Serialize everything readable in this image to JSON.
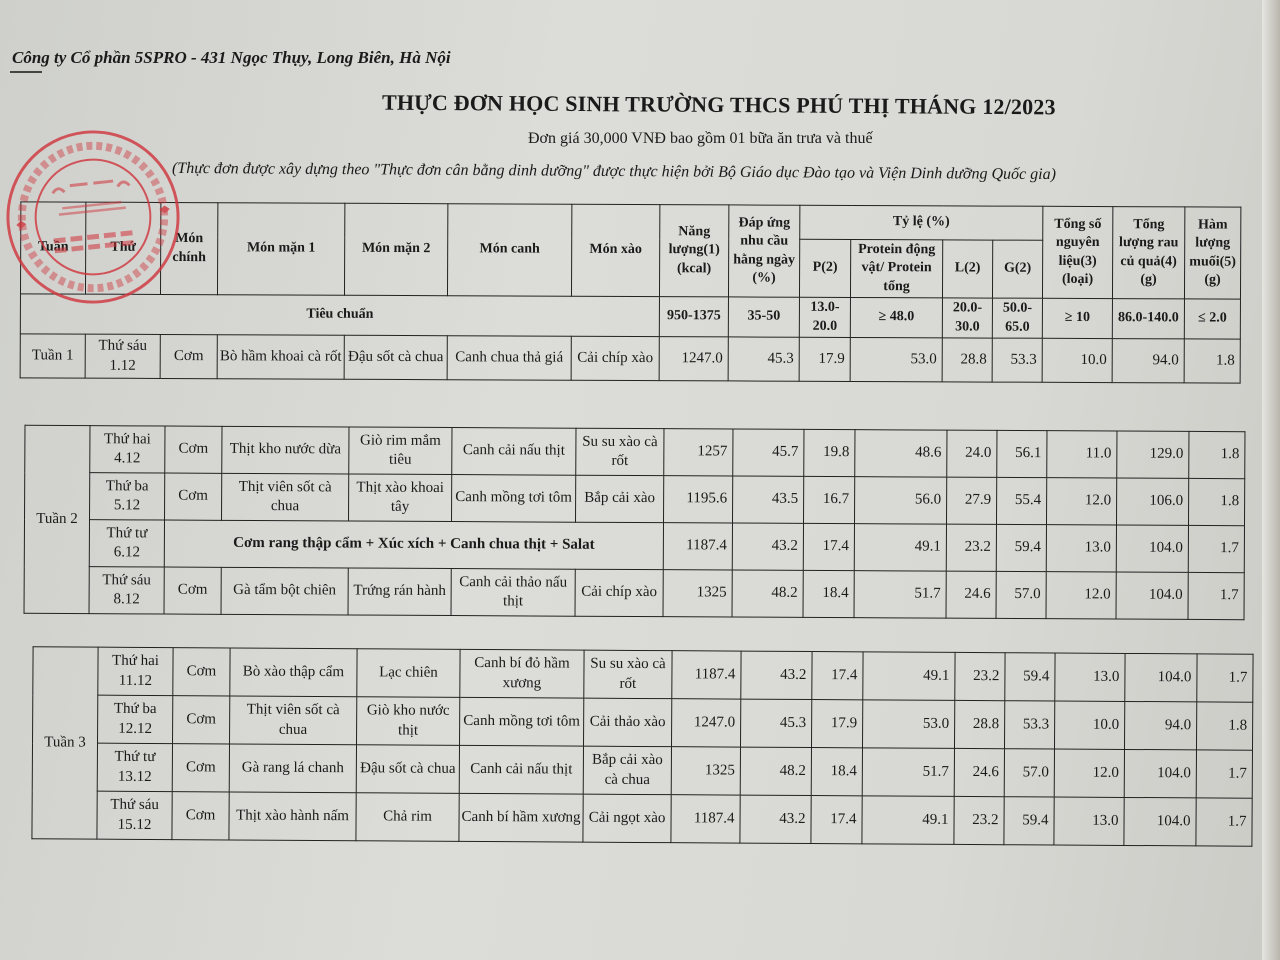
{
  "header": {
    "company": "Công ty Cổ phần 5SPRO  - 431 Ngọc Thụy, Long Biên, Hà Nội",
    "title": "THỰC ĐƠN HỌC SINH TRƯỜNG THCS PHÚ THỊ THÁNG 12/2023",
    "price": "Đơn giá 30,000 VNĐ bao gồm 01 bữa ăn trưa và thuế",
    "note": "(Thực đơn được xây dựng theo \"Thực đơn cân bằng dinh dưỡng\" được thực hiện bởi Bộ Giáo dục Đào tạo và Viện Dinh dưỡng Quốc gia)"
  },
  "stamp": {
    "color": "#d0343c",
    "lines": [
      "M.S.D.N:0104104405 - C.T.C.P",
      "CÔNG TY",
      "CỔ PHẦN",
      "5SPRO",
      "THÀNH PHỐ HÀ NỘI"
    ]
  },
  "columns": {
    "tuan": "Tuần",
    "thu": "Thứ",
    "mon_chinh": "Món chính",
    "mon_man_1": "Món mặn 1",
    "mon_man_2": "Món mặn 2",
    "mon_canh": "Món canh",
    "mon_xao": "Món xào",
    "nang_luong": "Năng lượng(1) (kcal)",
    "dap_ung": "Đáp ứng nhu cầu hằng ngày (%)",
    "ty_le": "Tỷ lệ (%)",
    "p": "P(2)",
    "protein": "Protein động vật/ Protein tổng",
    "l": "L(2)",
    "g": "G(2)",
    "tong_so": "Tổng số nguyên liệu(3) (loại)",
    "tong_luong": "Tổng lượng rau củ quả(4) (g)",
    "ham_luong": "Hàm lượng muối(5) (g)"
  },
  "standard": {
    "label": "Tiêu chuẩn",
    "values": [
      "950-1375",
      "35-50",
      "13.0-20.0",
      "≥ 48.0",
      "20.0-30.0",
      "50.0-65.0",
      "≥ 10",
      "86.0-140.0",
      "≤ 2.0"
    ]
  },
  "weeks": [
    {
      "label": "Tuần 1",
      "rows": [
        {
          "day": "Thứ sáu 1.12",
          "dishes": [
            "Cơm",
            "Bò hầm khoai cà rốt",
            "Đậu sốt cà chua",
            "Canh chua thả giá",
            "Cải chíp xào"
          ],
          "values": [
            "1247.0",
            "45.3",
            "17.9",
            "53.0",
            "28.8",
            "53.3",
            "10.0",
            "94.0",
            "1.8"
          ]
        }
      ]
    },
    {
      "label": "Tuần 2",
      "rows": [
        {
          "day": "Thứ hai 4.12",
          "dishes": [
            "Cơm",
            "Thịt kho nước dừa",
            "Giò rim mắm tiêu",
            "Canh cải nấu thịt",
            "Su su xào cà rốt"
          ],
          "values": [
            "1257",
            "45.7",
            "19.8",
            "48.6",
            "24.0",
            "56.1",
            "11.0",
            "129.0",
            "1.8"
          ]
        },
        {
          "day": "Thứ ba 5.12",
          "dishes": [
            "Cơm",
            "Thịt viên sốt cà chua",
            "Thịt xào khoai tây",
            "Canh mồng tơi tôm",
            "Bắp cải xào"
          ],
          "values": [
            "1195.6",
            "43.5",
            "16.7",
            "56.0",
            "27.9",
            "55.4",
            "12.0",
            "106.0",
            "1.8"
          ]
        },
        {
          "day": "Thứ tư 6.12",
          "merged": "Cơm rang thập cẩm + Xúc xích + Canh chua thịt + Salat",
          "values": [
            "1187.4",
            "43.2",
            "17.4",
            "49.1",
            "23.2",
            "59.4",
            "13.0",
            "104.0",
            "1.7"
          ]
        },
        {
          "day": "Thứ sáu 8.12",
          "dishes": [
            "Cơm",
            "Gà tẩm bột chiên",
            "Trứng rán hành",
            "Canh cải thảo nấu thịt",
            "Cải chíp xào"
          ],
          "values": [
            "1325",
            "48.2",
            "18.4",
            "51.7",
            "24.6",
            "57.0",
            "12.0",
            "104.0",
            "1.7"
          ]
        }
      ]
    },
    {
      "label": "Tuần 3",
      "rows": [
        {
          "day": "Thứ hai 11.12",
          "dishes": [
            "Cơm",
            "Bò xào thập cẩm",
            "Lạc chiên",
            "Canh bí đỏ hầm xương",
            "Su su xào cà rốt"
          ],
          "values": [
            "1187.4",
            "43.2",
            "17.4",
            "49.1",
            "23.2",
            "59.4",
            "13.0",
            "104.0",
            "1.7"
          ]
        },
        {
          "day": "Thứ ba 12.12",
          "dishes": [
            "Cơm",
            "Thịt viên sốt cà chua",
            "Giò kho nước thịt",
            "Canh mồng tơi tôm",
            "Cải thảo xào"
          ],
          "values": [
            "1247.0",
            "45.3",
            "17.9",
            "53.0",
            "28.8",
            "53.3",
            "10.0",
            "94.0",
            "1.8"
          ]
        },
        {
          "day": "Thứ tư 13.12",
          "dishes": [
            "Cơm",
            "Gà rang lá chanh",
            "Đậu sốt cà chua",
            "Canh cải nấu thịt",
            "Bắp cải xào cà chua"
          ],
          "values": [
            "1325",
            "48.2",
            "18.4",
            "51.7",
            "24.6",
            "57.0",
            "12.0",
            "104.0",
            "1.7"
          ]
        },
        {
          "day": "Thứ sáu 15.12",
          "dishes": [
            "Cơm",
            "Thịt xào hành nấm",
            "Chả rim",
            "Canh bí hầm xương",
            "Cải ngọt xào"
          ],
          "values": [
            "1187.4",
            "43.2",
            "17.4",
            "49.1",
            "23.2",
            "59.4",
            "13.0",
            "104.0",
            "1.7"
          ]
        }
      ]
    }
  ]
}
